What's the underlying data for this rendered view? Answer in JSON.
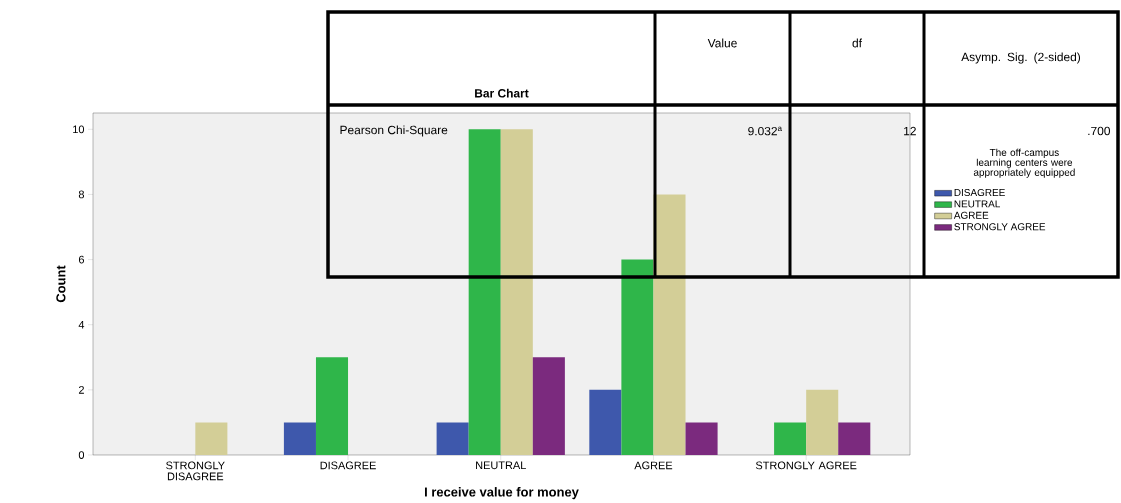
{
  "chart_data": {
    "type": "bar",
    "title": "Bar Chart",
    "xlabel": "I receive value for money",
    "ylabel": "Count",
    "legend_title": "The off-campus learning centers were appropriately equipped",
    "legend": "right",
    "categories": [
      "STRONGLY DISAGREE",
      "DISAGREE",
      "NEUTRAL",
      "AGREE",
      "STRONGLY AGREE"
    ],
    "series": [
      {
        "name": "DISAGREE",
        "color": "#3e58ac",
        "values": [
          0,
          1,
          1,
          2,
          0
        ]
      },
      {
        "name": "NEUTRAL",
        "color": "#2fb64a",
        "values": [
          0,
          3,
          10,
          6,
          1
        ]
      },
      {
        "name": "AGREE",
        "color": "#d3ce97",
        "values": [
          1,
          0,
          10,
          8,
          2
        ]
      },
      {
        "name": "STRONGLY AGREE",
        "color": "#7b2a7e",
        "values": [
          0,
          0,
          3,
          1,
          1
        ]
      }
    ],
    "ylim": [
      0,
      10.5
    ],
    "yticks": [
      0,
      2,
      4,
      6,
      8,
      10
    ],
    "annotations": [
      "Value",
      "df",
      "Asymp. Sig. (2-sided)",
      "Pearson Chi-Square",
      "9.032$^{a}$",
      "12",
      ".700"
    ]
  }
}
